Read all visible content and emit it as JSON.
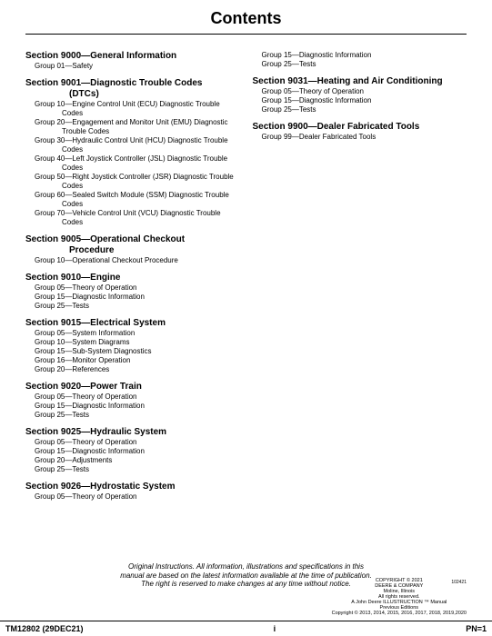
{
  "title": "Contents",
  "left_sections": [
    {
      "heading": "Section 9000—General Information",
      "groups": [
        "Group 01—Safety"
      ]
    },
    {
      "heading": "Section 9001—Diagnostic Trouble Codes",
      "heading_sub": "(DTCs)",
      "groups": [
        "Group 10—Engine Control Unit (ECU) Diagnostic Trouble Codes",
        "Group 20—Engagement and Monitor Unit (EMU) Diagnostic Trouble Codes",
        "Group 30—Hydraulic Control Unit (HCU) Diagnostic Trouble Codes",
        "Group 40—Left Joystick Controller (JSL) Diagnostic Trouble Codes",
        "Group 50—Right Joystick Controller (JSR) Diagnostic Trouble Codes",
        "Group 60—Sealed Switch Module (SSM) Diagnostic Trouble Codes",
        "Group 70—Vehicle Control Unit (VCU) Diagnostic Trouble Codes"
      ]
    },
    {
      "heading": "Section 9005—Operational Checkout",
      "heading_sub": "Procedure",
      "groups": [
        "Group 10—Operational Checkout Procedure"
      ]
    },
    {
      "heading": "Section 9010—Engine",
      "groups": [
        "Group 05—Theory of Operation",
        "Group 15—Diagnostic Information",
        "Group 25—Tests"
      ]
    },
    {
      "heading": "Section 9015—Electrical System",
      "groups": [
        "Group 05—System Information",
        "Group 10—System Diagrams",
        "Group 15—Sub-System Diagnostics",
        "Group 16—Monitor Operation",
        "Group 20—References"
      ]
    },
    {
      "heading": "Section 9020—Power Train",
      "groups": [
        "Group 05—Theory of Operation",
        "Group 15—Diagnostic Information",
        "Group 25—Tests"
      ]
    },
    {
      "heading": "Section 9025—Hydraulic System",
      "groups": [
        "Group 05—Theory of Operation",
        "Group 15—Diagnostic Information",
        "Group 20—Adjustments",
        "Group 25—Tests"
      ]
    },
    {
      "heading": "Section 9026—Hydrostatic System",
      "groups": [
        "Group 05—Theory of Operation"
      ]
    }
  ],
  "right_sections": [
    {
      "heading": "",
      "groups": [
        "Group 15—Diagnostic Information",
        "Group 25—Tests"
      ]
    },
    {
      "heading": "Section 9031—Heating and Air Conditioning",
      "groups": [
        "Group 05—Theory of Operation",
        "Group 15—Diagnostic Information",
        "Group 25—Tests"
      ]
    },
    {
      "heading": "Section 9900—Dealer Fabricated Tools",
      "groups": [
        "Group 99—Dealer Fabricated Tools"
      ]
    }
  ],
  "disclaimer": [
    "Original Instructions. All information, illustrations and specifications in this",
    "manual are based on the latest information available at the time of publication.",
    "The right is reserved to make changes at any time without notice."
  ],
  "tiny_right": "102421",
  "copyright": [
    "COPYRIGHT © 2021",
    "DEERE & COMPANY",
    "Moline, Illinois",
    "All rights reserved.",
    "A John Deere ILLUSTRUCTION ™ Manual",
    "Previous Editions",
    "Copyright © 2013, 2014, 2015, 2016, 2017, 2018, 2019,2020"
  ],
  "footer": {
    "left": "TM12802 (29DEC21)",
    "center": "i",
    "right": "PN=1"
  }
}
